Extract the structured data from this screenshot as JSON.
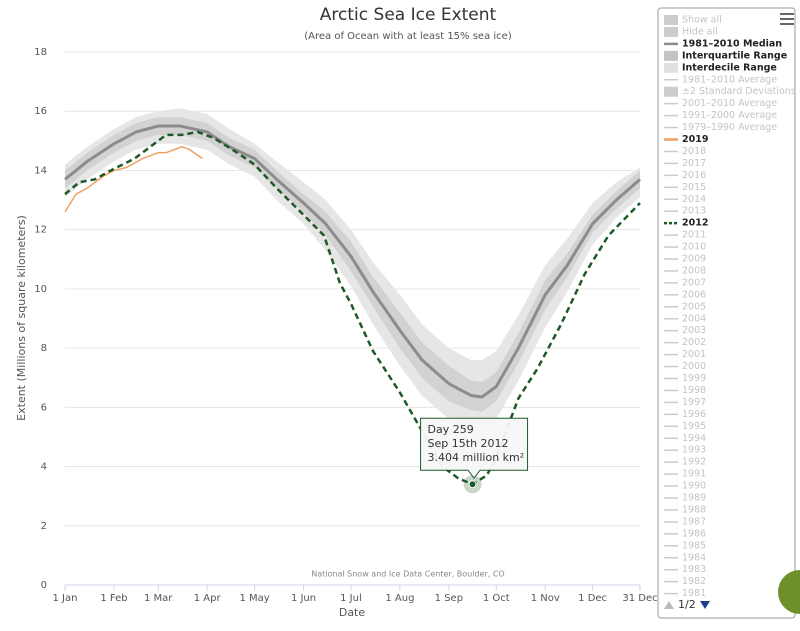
{
  "chart_data": {
    "type": "line",
    "title": "Arctic Sea Ice Extent",
    "subtitle": "(Area of Ocean with at least 15% sea ice)",
    "y_label": "Extent (Millions of square kilometers)",
    "x_label": "Date",
    "credit": "National Snow and Ice Data Center, Boulder, CO",
    "xlim": [
      1,
      365
    ],
    "xticks": [
      {
        "value": 1,
        "label": "1 Jan"
      },
      {
        "value": 32,
        "label": "1 Feb"
      },
      {
        "value": 60,
        "label": "1 Mar"
      },
      {
        "value": 91,
        "label": "1 Apr"
      },
      {
        "value": 121,
        "label": "1 May"
      },
      {
        "value": 152,
        "label": "1 Jun"
      },
      {
        "value": 182,
        "label": "1 Jul"
      },
      {
        "value": 213,
        "label": "1 Aug"
      },
      {
        "value": 244,
        "label": "1 Sep"
      },
      {
        "value": 274,
        "label": "1 Oct"
      },
      {
        "value": 305,
        "label": "1 Nov"
      },
      {
        "value": 335,
        "label": "1 Dec"
      },
      {
        "value": 365,
        "label": "31 Dec"
      }
    ],
    "ylim": [
      0,
      18
    ],
    "yticks": [
      0,
      2,
      4,
      6,
      8,
      10,
      12,
      14,
      16,
      18
    ],
    "grid": true,
    "series": [
      {
        "kind": "band",
        "color": "#e6e6e6",
        "x": [
          1,
          15,
          32,
          46,
          60,
          74,
          91,
          105,
          121,
          135,
          152,
          166,
          182,
          196,
          213,
          227,
          244,
          258,
          265,
          274,
          288,
          305,
          319,
          335,
          350,
          365
        ],
        "low": [
          13.1,
          13.7,
          14.3,
          14.7,
          14.9,
          14.9,
          14.7,
          14.2,
          13.8,
          13.0,
          12.2,
          11.3,
          10.1,
          8.8,
          7.4,
          6.4,
          5.6,
          5.3,
          5.3,
          5.6,
          6.9,
          8.7,
          9.9,
          11.5,
          12.4,
          13.1
        ],
        "high": [
          14.2,
          14.8,
          15.4,
          15.8,
          16.0,
          16.1,
          15.9,
          15.4,
          14.9,
          14.3,
          13.6,
          13.0,
          12.0,
          10.9,
          9.8,
          8.8,
          8.0,
          7.6,
          7.6,
          7.9,
          9.1,
          10.8,
          11.7,
          12.9,
          13.6,
          14.1
        ]
      },
      {
        "kind": "band",
        "color": "#d2d2d2",
        "x": [
          1,
          15,
          32,
          46,
          60,
          74,
          91,
          105,
          121,
          135,
          152,
          166,
          182,
          196,
          213,
          227,
          244,
          258,
          265,
          274,
          288,
          305,
          319,
          335,
          350,
          365
        ],
        "low": [
          13.4,
          14.0,
          14.6,
          15.0,
          15.2,
          15.2,
          15.0,
          14.5,
          14.1,
          13.4,
          12.6,
          11.8,
          10.6,
          9.4,
          8.0,
          7.0,
          6.2,
          5.9,
          5.85,
          6.2,
          7.5,
          9.3,
          10.4,
          11.9,
          12.7,
          13.4
        ],
        "high": [
          14.0,
          14.6,
          15.2,
          15.6,
          15.8,
          15.8,
          15.6,
          15.1,
          14.7,
          14.0,
          13.2,
          12.6,
          11.6,
          10.4,
          9.2,
          8.2,
          7.4,
          6.9,
          6.85,
          7.2,
          8.5,
          10.3,
          11.2,
          12.5,
          13.3,
          14.0
        ]
      },
      {
        "kind": "line",
        "color": "#8c8c8c",
        "width": 3,
        "x": [
          1,
          15,
          32,
          46,
          60,
          74,
          91,
          105,
          121,
          135,
          152,
          166,
          182,
          196,
          213,
          227,
          244,
          258,
          265,
          274,
          288,
          305,
          319,
          335,
          350,
          365
        ],
        "values": [
          13.7,
          14.3,
          14.9,
          15.3,
          15.5,
          15.5,
          15.3,
          14.8,
          14.4,
          13.7,
          12.9,
          12.2,
          11.1,
          9.9,
          8.6,
          7.6,
          6.8,
          6.4,
          6.35,
          6.7,
          8.0,
          9.8,
          10.8,
          12.2,
          13.0,
          13.7
        ]
      },
      {
        "kind": "line",
        "color": "#f0a060",
        "width": 1.5,
        "x": [
          1,
          8,
          15,
          25,
          32,
          40,
          50,
          60,
          65,
          75,
          80,
          88
        ],
        "values": [
          12.6,
          13.2,
          13.4,
          13.8,
          14.0,
          14.1,
          14.4,
          14.6,
          14.6,
          14.8,
          14.7,
          14.4
        ]
      },
      {
        "kind": "line",
        "color": "#1e5a28",
        "width": 2.5,
        "dashed": true,
        "x": [
          1,
          10,
          20,
          30,
          45,
          55,
          65,
          75,
          85,
          95,
          110,
          121,
          135,
          152,
          165,
          175,
          182,
          196,
          213,
          227,
          240,
          250,
          259,
          268,
          274,
          288,
          300,
          315,
          330,
          345,
          365
        ],
        "values": [
          13.2,
          13.6,
          13.7,
          14.0,
          14.4,
          14.8,
          15.2,
          15.2,
          15.3,
          15.1,
          14.6,
          14.2,
          13.4,
          12.5,
          11.8,
          10.2,
          9.5,
          7.9,
          6.5,
          5.2,
          4.0,
          3.6,
          3.404,
          3.7,
          4.3,
          6.3,
          7.3,
          8.8,
          10.5,
          11.8,
          12.9
        ]
      }
    ],
    "tooltip": {
      "series": 4,
      "point": 22,
      "lines": [
        "Day 259",
        "Sep 15th 2012",
        "3.404 million km²"
      ]
    },
    "legend": {
      "page": "1/2",
      "items": [
        {
          "label": "Show all",
          "swatch": "box",
          "color": "#cccccc",
          "active": false
        },
        {
          "label": "Hide all",
          "swatch": "box",
          "color": "#cccccc",
          "active": false
        },
        {
          "label": "1981–2010 Median",
          "swatch": "line",
          "color": "#8c8c8c",
          "active": true
        },
        {
          "label": "Interquartile Range",
          "swatch": "box",
          "color": "#c4c4c4",
          "active": true
        },
        {
          "label": "Interdecile Range",
          "swatch": "box",
          "color": "#e0e0e0",
          "active": true
        },
        {
          "label": "1981–2010 Average",
          "swatch": "line",
          "color": "#cccccc",
          "active": false
        },
        {
          "label": "±2 Standard Deviations",
          "swatch": "box",
          "color": "#cccccc",
          "active": false
        },
        {
          "label": "2001–2010 Average",
          "swatch": "line",
          "color": "#cccccc",
          "active": false
        },
        {
          "label": "1991–2000 Average",
          "swatch": "line",
          "color": "#cccccc",
          "active": false
        },
        {
          "label": "1979–1990 Average",
          "swatch": "line",
          "color": "#cccccc",
          "active": false
        },
        {
          "label": "2019",
          "swatch": "line",
          "color": "#f0a060",
          "active": true
        },
        {
          "label": "2018",
          "swatch": "line",
          "color": "#cccccc",
          "active": false
        },
        {
          "label": "2017",
          "swatch": "line",
          "color": "#cccccc",
          "active": false
        },
        {
          "label": "2016",
          "swatch": "line",
          "color": "#cccccc",
          "active": false
        },
        {
          "label": "2015",
          "swatch": "line",
          "color": "#cccccc",
          "active": false
        },
        {
          "label": "2014",
          "swatch": "line",
          "color": "#cccccc",
          "active": false
        },
        {
          "label": "2013",
          "swatch": "line",
          "color": "#cccccc",
          "active": false
        },
        {
          "label": "2012",
          "swatch": "dash",
          "color": "#1e5a28",
          "active": true
        },
        {
          "label": "2011",
          "swatch": "line",
          "color": "#cccccc",
          "active": false
        },
        {
          "label": "2010",
          "swatch": "line",
          "color": "#cccccc",
          "active": false
        },
        {
          "label": "2009",
          "swatch": "line",
          "color": "#cccccc",
          "active": false
        },
        {
          "label": "2008",
          "swatch": "line",
          "color": "#cccccc",
          "active": false
        },
        {
          "label": "2007",
          "swatch": "line",
          "color": "#cccccc",
          "active": false
        },
        {
          "label": "2006",
          "swatch": "line",
          "color": "#cccccc",
          "active": false
        },
        {
          "label": "2005",
          "swatch": "line",
          "color": "#cccccc",
          "active": false
        },
        {
          "label": "2004",
          "swatch": "line",
          "color": "#cccccc",
          "active": false
        },
        {
          "label": "2003",
          "swatch": "line",
          "color": "#cccccc",
          "active": false
        },
        {
          "label": "2002",
          "swatch": "line",
          "color": "#cccccc",
          "active": false
        },
        {
          "label": "2001",
          "swatch": "line",
          "color": "#cccccc",
          "active": false
        },
        {
          "label": "2000",
          "swatch": "line",
          "color": "#cccccc",
          "active": false
        },
        {
          "label": "1999",
          "swatch": "line",
          "color": "#cccccc",
          "active": false
        },
        {
          "label": "1998",
          "swatch": "line",
          "color": "#cccccc",
          "active": false
        },
        {
          "label": "1997",
          "swatch": "line",
          "color": "#cccccc",
          "active": false
        },
        {
          "label": "1996",
          "swatch": "line",
          "color": "#cccccc",
          "active": false
        },
        {
          "label": "1995",
          "swatch": "line",
          "color": "#cccccc",
          "active": false
        },
        {
          "label": "1994",
          "swatch": "line",
          "color": "#cccccc",
          "active": false
        },
        {
          "label": "1993",
          "swatch": "line",
          "color": "#cccccc",
          "active": false
        },
        {
          "label": "1992",
          "swatch": "line",
          "color": "#cccccc",
          "active": false
        },
        {
          "label": "1991",
          "swatch": "line",
          "color": "#cccccc",
          "active": false
        },
        {
          "label": "1990",
          "swatch": "line",
          "color": "#cccccc",
          "active": false
        },
        {
          "label": "1989",
          "swatch": "line",
          "color": "#cccccc",
          "active": false
        },
        {
          "label": "1988",
          "swatch": "line",
          "color": "#cccccc",
          "active": false
        },
        {
          "label": "1987",
          "swatch": "line",
          "color": "#cccccc",
          "active": false
        },
        {
          "label": "1986",
          "swatch": "line",
          "color": "#cccccc",
          "active": false
        },
        {
          "label": "1985",
          "swatch": "line",
          "color": "#cccccc",
          "active": false
        },
        {
          "label": "1984",
          "swatch": "line",
          "color": "#cccccc",
          "active": false
        },
        {
          "label": "1983",
          "swatch": "line",
          "color": "#cccccc",
          "active": false
        },
        {
          "label": "1982",
          "swatch": "line",
          "color": "#cccccc",
          "active": false
        },
        {
          "label": "1981",
          "swatch": "line",
          "color": "#cccccc",
          "active": false
        }
      ]
    }
  }
}
